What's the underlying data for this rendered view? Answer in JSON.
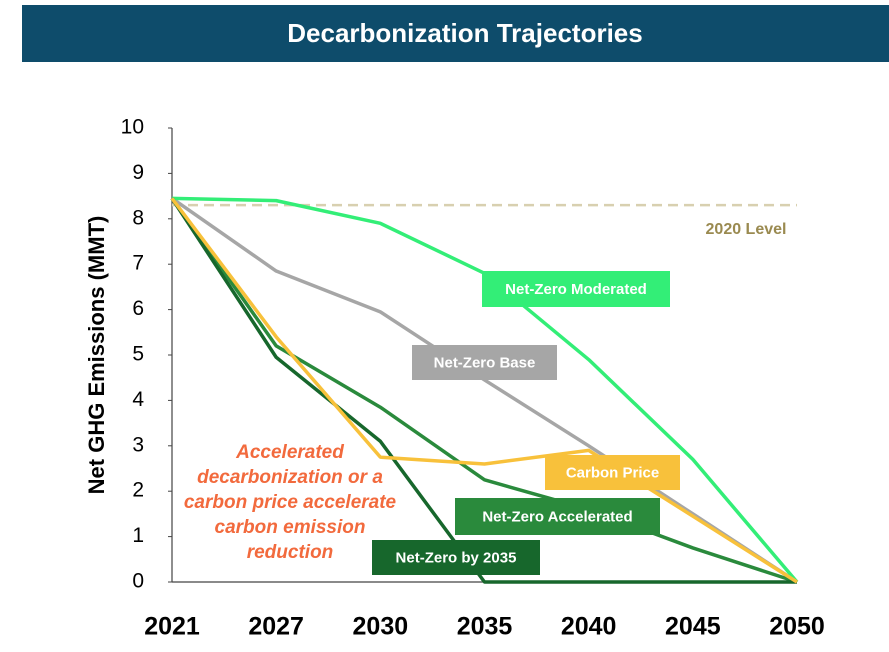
{
  "chart_data": {
    "type": "line",
    "title": "Decarbonization Trajectories",
    "ylabel": "Net GHG Emissions (MMT)",
    "categories": [
      "2021",
      "2027",
      "2030",
      "2035",
      "2040",
      "2045",
      "2050"
    ],
    "ylim": [
      0,
      10
    ],
    "yticks": [
      0,
      1,
      2,
      3,
      4,
      5,
      6,
      7,
      8,
      9,
      10
    ],
    "series": [
      {
        "name": "Net-Zero Moderated",
        "color": "#33ee77",
        "values": [
          8.45,
          8.4,
          7.9,
          6.8,
          4.9,
          2.7,
          0
        ]
      },
      {
        "name": "Net-Zero Base",
        "color": "#a6a6a6",
        "values": [
          8.45,
          6.85,
          5.95,
          4.45,
          3.0,
          1.5,
          0
        ]
      },
      {
        "name": "Carbon Price",
        "color": "#f8c13b",
        "values": [
          8.45,
          5.4,
          2.75,
          2.6,
          2.9,
          1.45,
          0
        ]
      },
      {
        "name": "Net-Zero Accelerated",
        "color": "#2a8a3c",
        "values": [
          8.45,
          5.2,
          3.85,
          2.25,
          1.6,
          0.75,
          0
        ]
      },
      {
        "name": "Net-Zero by 2035",
        "color": "#17672c",
        "values": [
          8.45,
          4.95,
          3.1,
          0,
          0,
          0,
          0
        ]
      }
    ],
    "reference_line": {
      "label": "2020 Level",
      "value": 8.3,
      "color": "#d8d0b0"
    },
    "annotation": [
      "Accelerated",
      "decarbonization or a",
      "carbon price accelerate",
      "carbon emission",
      "reduction"
    ]
  }
}
